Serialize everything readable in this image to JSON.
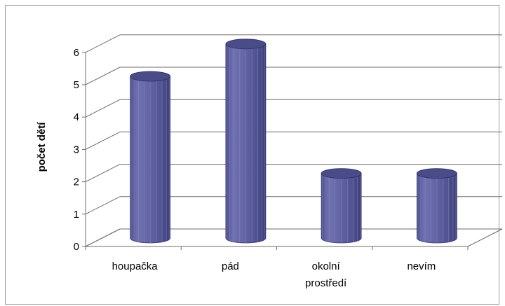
{
  "chart_data": {
    "type": "bar",
    "bar_style": "3d-cylinder",
    "categories": [
      "houpačka",
      "pád",
      "okolní prostředí",
      "nevím"
    ],
    "category_lines": [
      [
        "houpačka"
      ],
      [
        "pád"
      ],
      [
        "okolní",
        "prostředí"
      ],
      [
        "nevím"
      ]
    ],
    "values": [
      5,
      6,
      2,
      2
    ],
    "title": "",
    "xlabel": "",
    "ylabel": "počet dětí",
    "ylim": [
      0,
      6
    ],
    "yticks": [
      0,
      1,
      2,
      3,
      4,
      5,
      6
    ],
    "grid": true,
    "legend": "none",
    "colors": {
      "bar_front": "#5a5c9c",
      "bar_dark": "#3f417a",
      "bar_light": "#7678b8",
      "bar_top": "#4a4c8a",
      "grid": "#6b6b6b",
      "axis": "#6b6b6b"
    }
  }
}
